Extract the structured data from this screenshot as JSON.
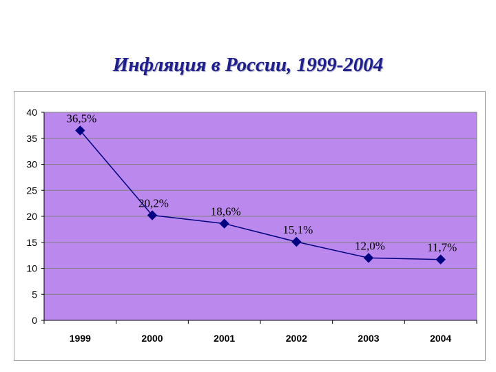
{
  "chart_data": {
    "type": "line",
    "title": "Инфляция в России, 1999-2004",
    "categories": [
      "1999",
      "2000",
      "2001",
      "2002",
      "2003",
      "2004"
    ],
    "values": [
      36.5,
      20.2,
      18.6,
      15.1,
      12.0,
      11.7
    ],
    "data_labels": [
      "36,5%",
      "20,2%",
      "18,6%",
      "15,1%",
      "12,0%",
      "11,7%"
    ],
    "ylim": [
      0,
      40
    ],
    "yticks": [
      0,
      5,
      10,
      15,
      20,
      25,
      30,
      35,
      40
    ],
    "grid": true,
    "colors": {
      "plot_background": "#bb88ee",
      "line": "#000080",
      "marker": "#000080",
      "grid": "#808080"
    }
  }
}
